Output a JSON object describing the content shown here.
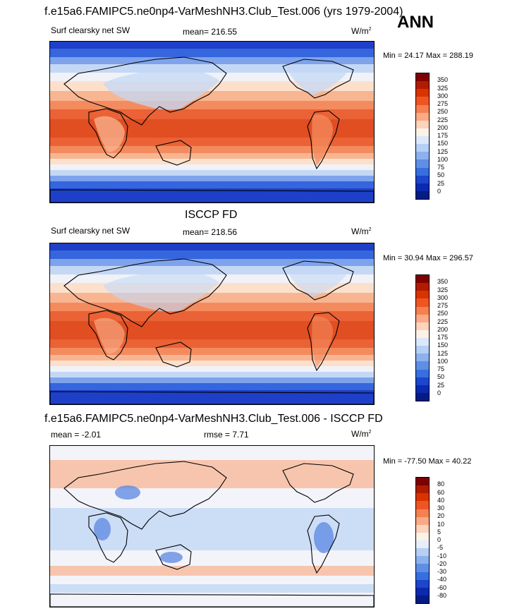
{
  "figure": {
    "season": "ANN"
  },
  "panels": [
    {
      "title": "f.e15a6.FAMIPC5.ne0np4-VarMeshNH3.Club_Test.006 (yrs 1979-2004)",
      "left_label": "Surf clearsky net SW",
      "center_label": "mean= 216.55",
      "units": "W/m",
      "units_sup": "2",
      "minmax": "Min =  24.17 Max = 288.19",
      "kind": "abs",
      "colorbar": {
        "labels": [
          "350",
          "325",
          "300",
          "275",
          "250",
          "225",
          "200",
          "175",
          "150",
          "125",
          "100",
          "75",
          "50",
          "25",
          "0"
        ],
        "colors": [
          "#7f0000",
          "#b01c00",
          "#d93300",
          "#ee5522",
          "#f58050",
          "#faaa85",
          "#fdd3bb",
          "#fdf2e8",
          "#dbe8fa",
          "#b6cff5",
          "#8db1ee",
          "#5f8fe5",
          "#386fe0",
          "#1c46cc",
          "#0b2ab0",
          "#041c85"
        ]
      }
    },
    {
      "title": "ISCCP FD",
      "left_label": "Surf clearsky net SW",
      "center_label": "mean= 218.56",
      "units": "W/m",
      "units_sup": "2",
      "minmax": "Min =  30.94 Max = 296.57",
      "kind": "abs",
      "colorbar": {
        "labels": [
          "350",
          "325",
          "300",
          "275",
          "250",
          "225",
          "200",
          "175",
          "150",
          "125",
          "100",
          "75",
          "50",
          "25",
          "0"
        ],
        "colors": [
          "#7f0000",
          "#b01c00",
          "#d93300",
          "#ee5522",
          "#f58050",
          "#faaa85",
          "#fdd3bb",
          "#fdf2e8",
          "#dbe8fa",
          "#b6cff5",
          "#8db1ee",
          "#5f8fe5",
          "#386fe0",
          "#1c46cc",
          "#0b2ab0",
          "#041c85"
        ]
      }
    },
    {
      "title": "f.e15a6.FAMIPC5.ne0np4-VarMeshNH3.Club_Test.006 - ISCCP FD",
      "left_label": "mean =  -2.01",
      "center_label": "rmse =   7.71",
      "units": "W/m",
      "units_sup": "2",
      "minmax": "Min = -77.50 Max =  40.22",
      "kind": "diff",
      "colorbar": {
        "labels": [
          "80",
          "60",
          "40",
          "30",
          "20",
          "10",
          "5",
          "0",
          "-5",
          "-10",
          "-20",
          "-30",
          "-40",
          "-60",
          "-80"
        ],
        "colors": [
          "#7f0000",
          "#b01c00",
          "#d93300",
          "#ee5522",
          "#f58050",
          "#faaa85",
          "#fdd3bb",
          "#fdf2e8",
          "#e6eefb",
          "#b6cff5",
          "#8db1ee",
          "#5f8fe5",
          "#386fe0",
          "#1c46cc",
          "#0b2ab0",
          "#041c85"
        ]
      }
    }
  ],
  "palette": {
    "abs_bands": [
      "#1e3fc8",
      "#3566dd",
      "#7ea3ec",
      "#c4d8f6",
      "#f0f2f8",
      "#fde0cc",
      "#f8b591",
      "#f48b5e",
      "#ea6235",
      "#e04e22"
    ],
    "diff_base": "#f2f4fa",
    "diff_warm": "#f7b99b",
    "diff_cool": "#c8daf5",
    "diff_deep": "#5b86e3",
    "land_line": "#000000"
  }
}
